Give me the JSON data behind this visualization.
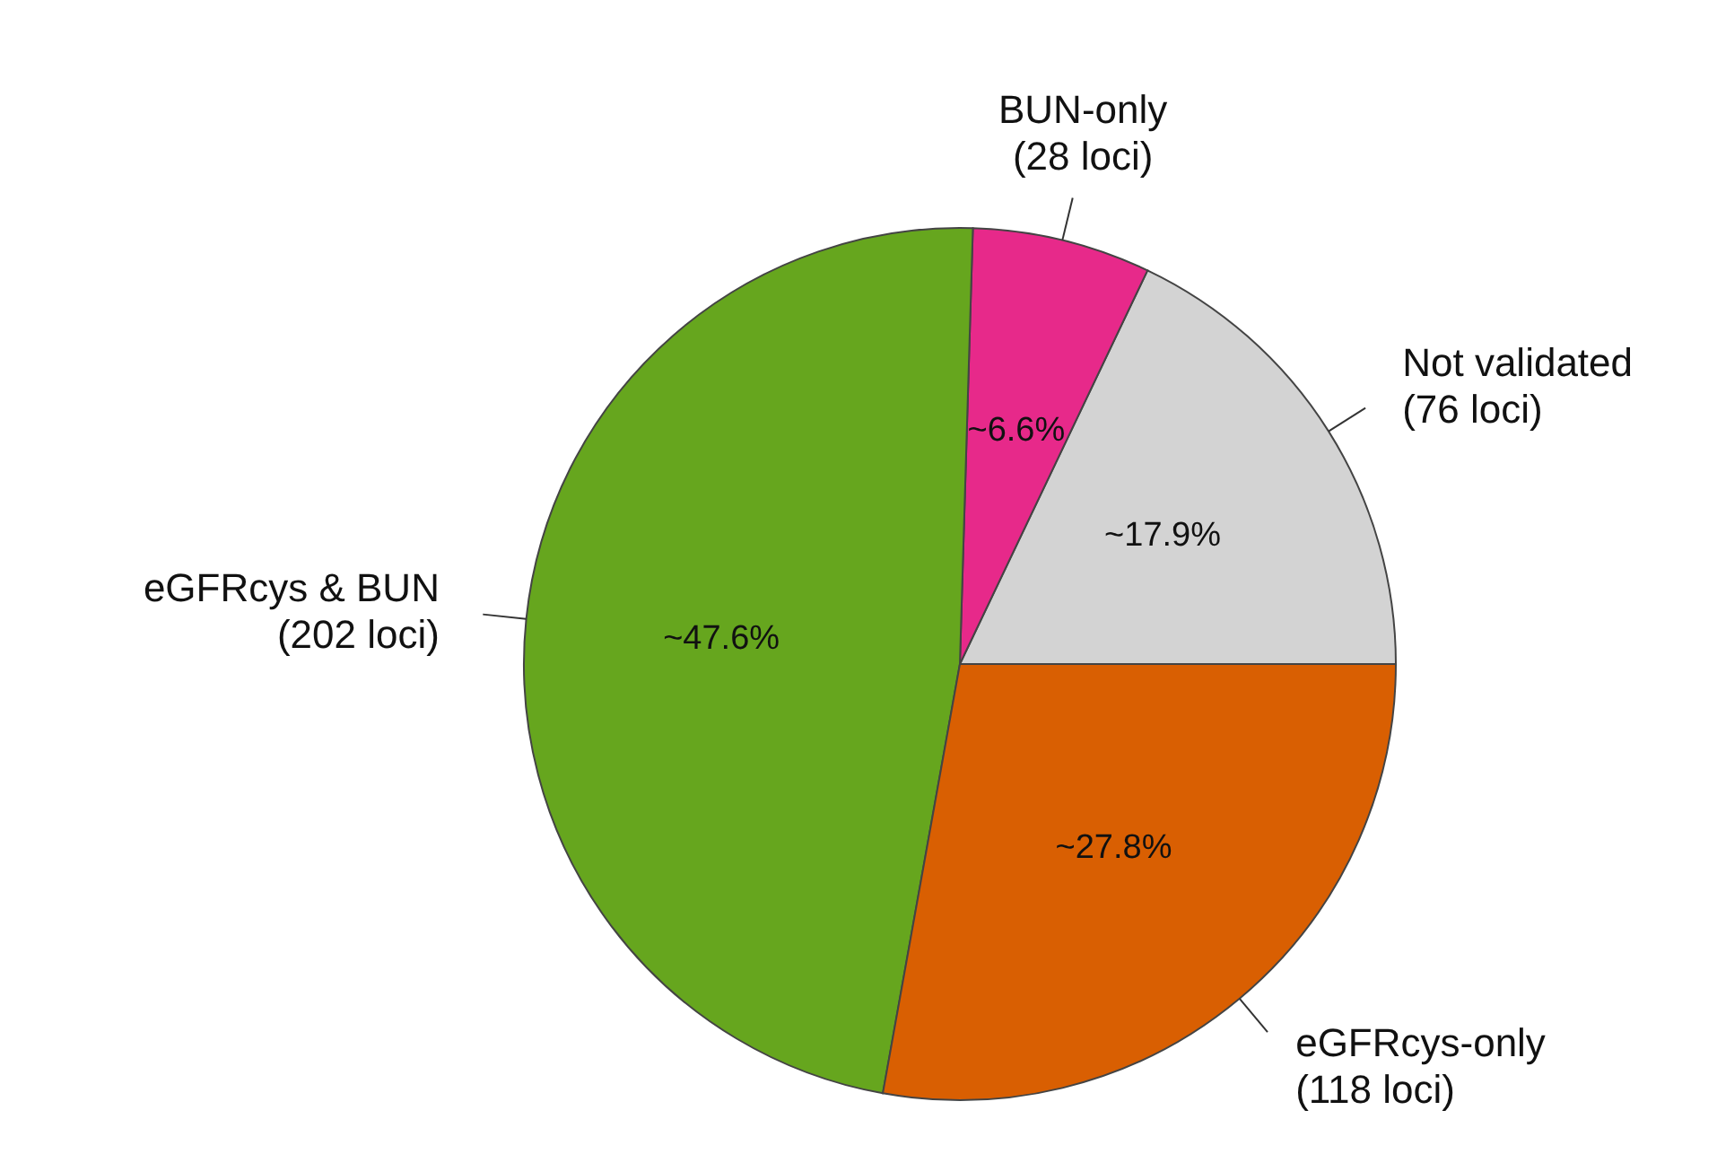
{
  "chart_data": {
    "type": "pie",
    "categories": [
      "Not validated (76 loci)",
      "BUN-only (28 loci)",
      "eGFRcys & BUN (202 loci)",
      "eGFRcys-only (118 loci)"
    ],
    "values": [
      17.9,
      6.6,
      47.6,
      27.8
    ],
    "value_labels": [
      "~17.9%",
      "~6.6%",
      "~47.6%",
      "~27.8%"
    ],
    "colors": [
      "#d3d3d3",
      "#e7298a",
      "#66a61e",
      "#d95f02"
    ],
    "legend": false
  }
}
